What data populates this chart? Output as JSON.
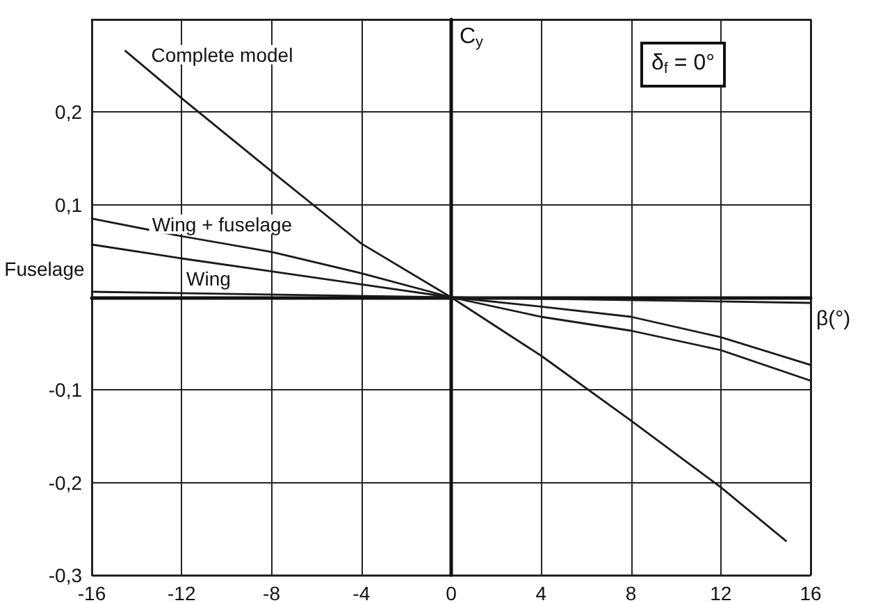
{
  "chart_data": {
    "type": "line",
    "xlabel": "β(°)",
    "ylabel": "C$_{y}$",
    "xlim": [
      -16,
      16
    ],
    "xticks": [
      -16,
      -12,
      -8,
      -4,
      0,
      4,
      8,
      12,
      16
    ],
    "ylim": [
      -0.3,
      0.3
    ],
    "yticks": [
      {
        "value": -0.3,
        "label": "-0,3"
      },
      {
        "value": -0.2,
        "label": "-0,2"
      },
      {
        "value": -0.1,
        "label": "-0,1"
      },
      {
        "value": 0,
        "label": null
      },
      {
        "value": 0.1,
        "label": "0,1"
      },
      {
        "value": 0.2,
        "label": "0,2"
      },
      {
        "value": 0.3,
        "label": null
      }
    ],
    "grid": true,
    "marker": "none",
    "line_style": "solid",
    "series": [
      {
        "color": "#1a1a1a",
        "x": [
          -14.5,
          -12,
          -8,
          -4,
          0,
          4,
          8,
          12,
          14.9
        ],
        "values": [
          0.266,
          0.215,
          0.136,
          0.058,
          0,
          -0.063,
          -0.133,
          -0.205,
          -0.263
        ]
      },
      {
        "color": "#1a1a1a",
        "x": [
          -16,
          -12,
          -8,
          -4,
          0,
          4,
          8,
          12,
          16
        ],
        "values": [
          0.085,
          0.066,
          0.049,
          0.026,
          0,
          -0.021,
          -0.036,
          -0.057,
          -0.09
        ]
      },
      {
        "color": "#1a1a1a",
        "x": [
          -16,
          -12,
          -8,
          -4,
          0,
          4,
          8,
          12,
          16
        ],
        "values": [
          0.057,
          0.042,
          0.028,
          0.014,
          0,
          -0.01,
          -0.021,
          -0.043,
          -0.073
        ]
      },
      {
        "color": "#1a1a1a",
        "x": [
          -16,
          0,
          16
        ],
        "values": [
          0.006,
          0,
          -0.006
        ]
      }
    ],
    "annotations": [
      "Complete model",
      "Wing + fuselage",
      "Fuselage",
      "Wing",
      "δ$_{f}$ = 0°"
    ]
  }
}
